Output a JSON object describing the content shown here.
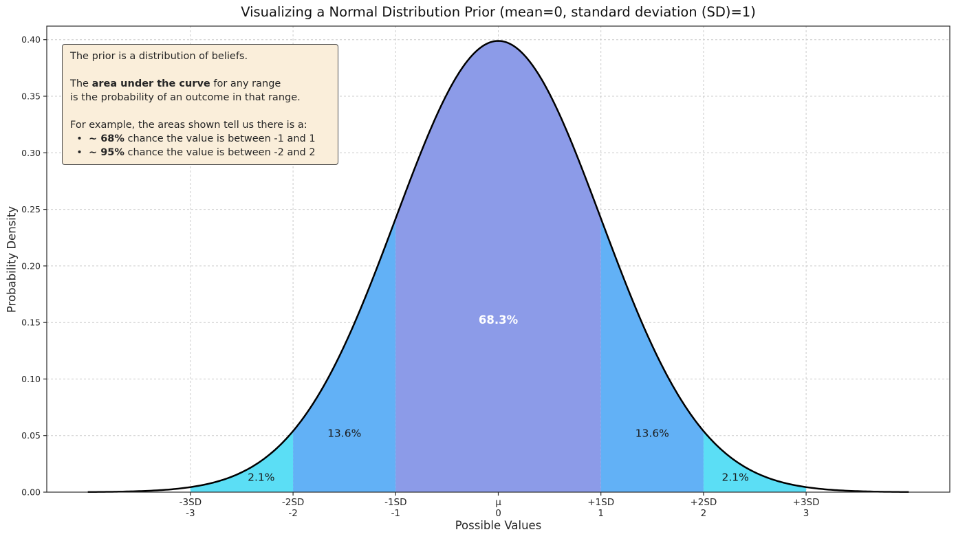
{
  "infobox": {
    "bg": "#faeeda",
    "border": "#4a4a4a",
    "lines": [
      [
        {
          "t": "The prior is a distribution of beliefs."
        }
      ],
      [],
      [
        {
          "t": "The "
        },
        {
          "t": "area under the curve",
          "b": true
        },
        {
          "t": " for any range"
        }
      ],
      [
        {
          "t": "is the probability of an outcome in that range."
        }
      ],
      [],
      [
        {
          "t": "For example, the areas shown tell us there is a:"
        }
      ],
      [
        {
          "t": "  •  "
        },
        {
          "t": "~ 68%",
          "b": true
        },
        {
          "t": " chance the value is between -1 and 1"
        }
      ],
      [
        {
          "t": "  •  "
        },
        {
          "t": "~ 95%",
          "b": true
        },
        {
          "t": " chance the value is between -2 and 2"
        }
      ]
    ]
  },
  "chart_data": {
    "type": "area",
    "title": "Visualizing a Normal Distribution Prior (mean=0, standard deviation (SD)=1)",
    "xlabel": "Possible Values",
    "ylabel": "Probability Density",
    "distribution": {
      "name": "normal",
      "mean": 0,
      "sd": 1,
      "peak_density": 0.3989
    },
    "curve_color": "#000000",
    "curve_x_range": [
      -4,
      4
    ],
    "xlim": [
      -4.4,
      4.4
    ],
    "ylim": [
      0,
      0.412
    ],
    "grid": "dashed",
    "y_ticks": [
      "0.00",
      "0.05",
      "0.10",
      "0.15",
      "0.20",
      "0.25",
      "0.30",
      "0.35",
      "0.40"
    ],
    "x_ticks": [
      {
        "v": -3,
        "top": "-3SD",
        "bottom": "-3"
      },
      {
        "v": -2,
        "top": "-2SD",
        "bottom": "-2"
      },
      {
        "v": -1,
        "top": "-1SD",
        "bottom": "-1"
      },
      {
        "v": 0,
        "top": "μ",
        "bottom": "0"
      },
      {
        "v": 1,
        "top": "+1SD",
        "bottom": "1"
      },
      {
        "v": 2,
        "top": "+2SD",
        "bottom": "2"
      },
      {
        "v": 3,
        "top": "+3SD",
        "bottom": "3"
      }
    ],
    "regions": [
      {
        "from": -3,
        "to": -2,
        "label": "2.1%",
        "color": "#5bdef5",
        "label_color": "#1a1a1a",
        "label_x": -2.31,
        "label_y": 0.013,
        "label_bold": false
      },
      {
        "from": -2,
        "to": -1,
        "label": "13.6%",
        "color": "#62b1f6",
        "label_color": "#1a1a1a",
        "label_x": -1.5,
        "label_y": 0.052,
        "label_bold": false
      },
      {
        "from": -1,
        "to": 1,
        "label": "68.3%",
        "color": "#8c9be8",
        "label_color": "#ffffff",
        "label_x": 0,
        "label_y": 0.152,
        "label_bold": true
      },
      {
        "from": 1,
        "to": 2,
        "label": "13.6%",
        "color": "#62b1f6",
        "label_color": "#1a1a1a",
        "label_x": 1.5,
        "label_y": 0.052,
        "label_bold": false
      },
      {
        "from": 2,
        "to": 3,
        "label": "2.1%",
        "color": "#5bdef5",
        "label_color": "#1a1a1a",
        "label_x": 2.31,
        "label_y": 0.013,
        "label_bold": false
      }
    ]
  }
}
